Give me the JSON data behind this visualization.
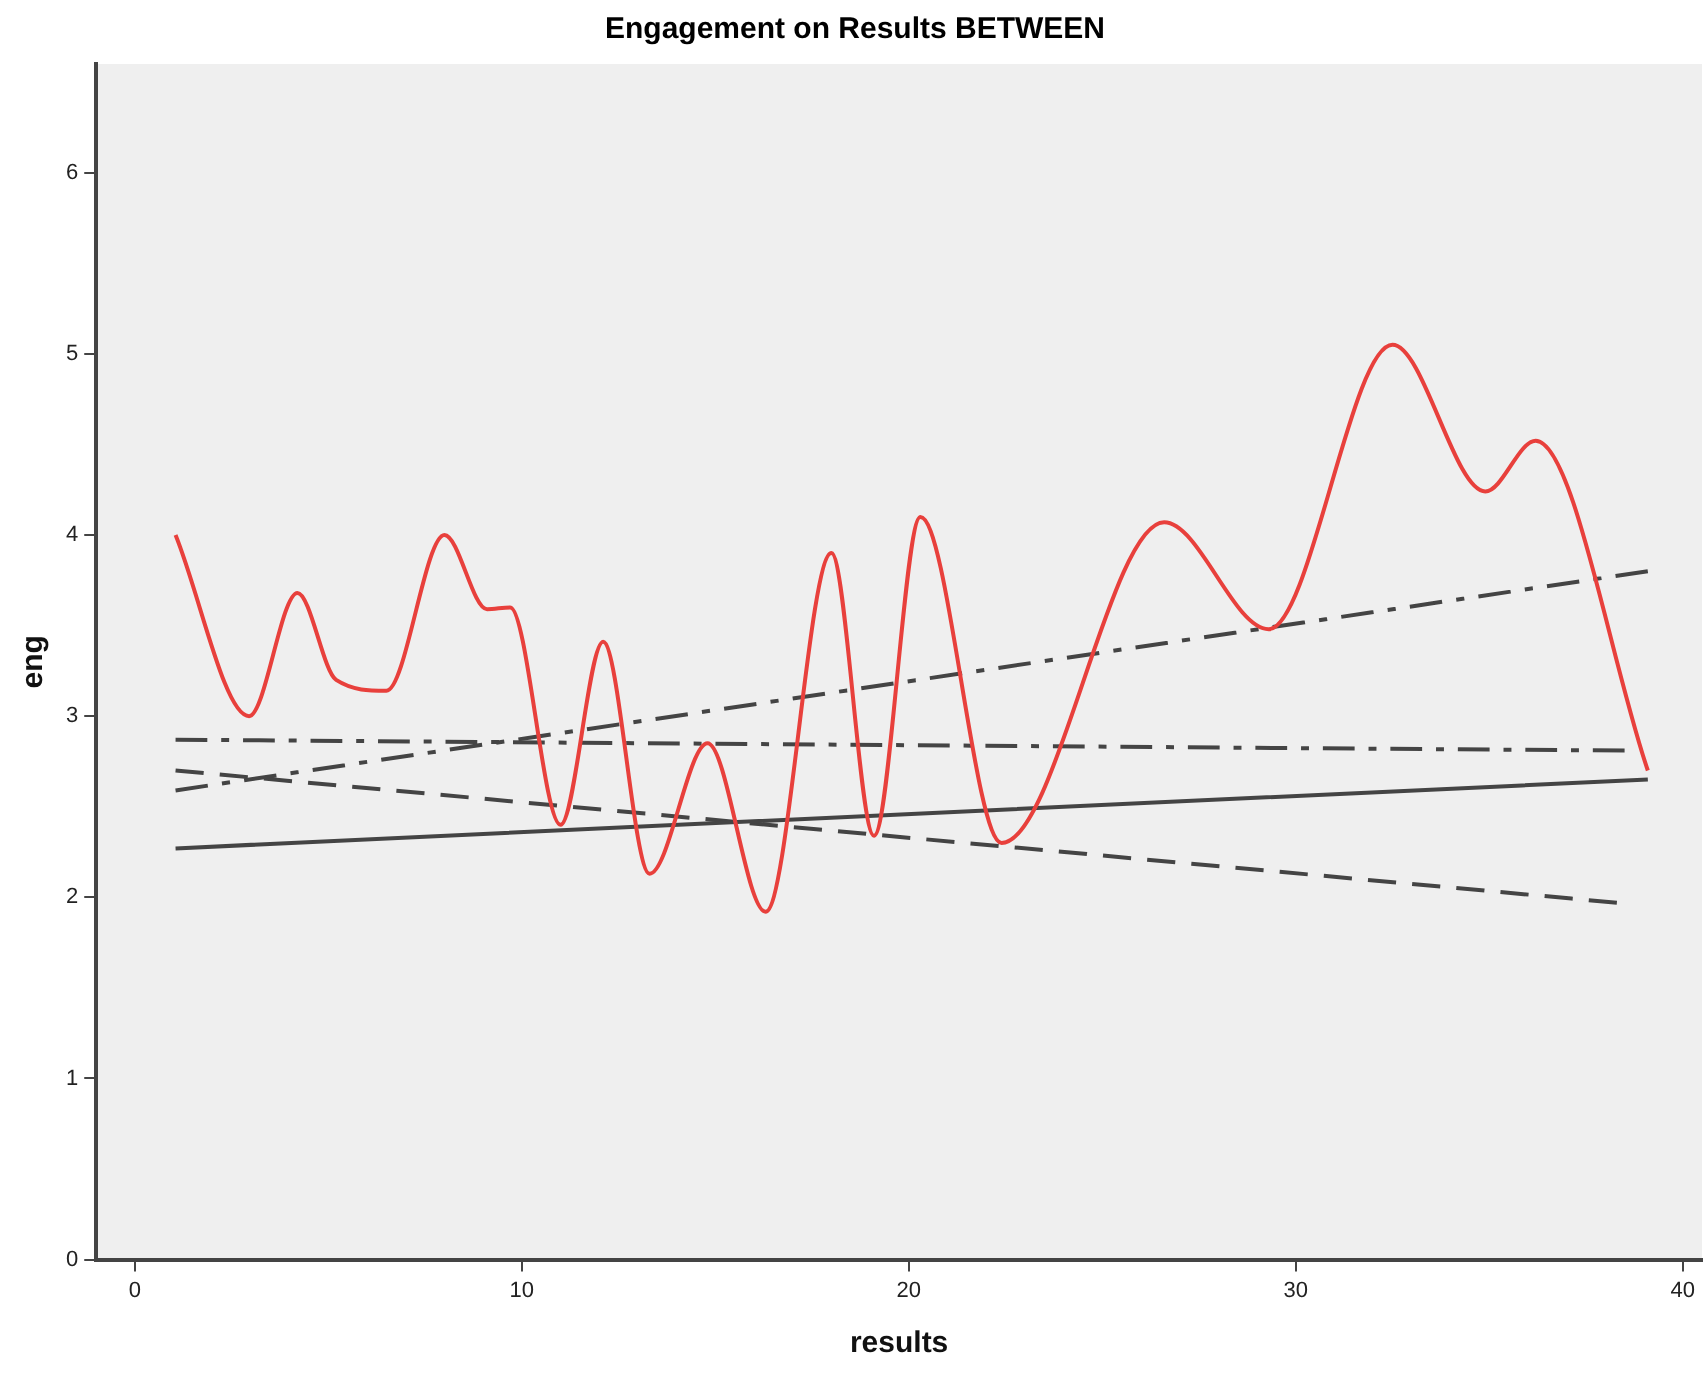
{
  "chart_data": {
    "type": "line",
    "title": "Engagement on Results BETWEEN",
    "xlabel": "results",
    "ylabel": "eng",
    "xlim": [
      -1,
      40.5
    ],
    "ylim": [
      0,
      6.6
    ],
    "xticks": [
      0,
      10,
      20,
      30,
      40
    ],
    "yticks": [
      0,
      1,
      2,
      3,
      4,
      5,
      6
    ],
    "grid": false,
    "legend": false,
    "marker": "none",
    "series": [
      {
        "color": "#e8403c",
        "line_style": "solid",
        "x": [
          1.05,
          2.95,
          4.2,
          5.2,
          6.5,
          8.0,
          9.1,
          9.7,
          11.0,
          12.1,
          13.3,
          14.8,
          16.3,
          18.0,
          19.1,
          20.3,
          22.4,
          26.6,
          29.3,
          32.5,
          34.9,
          36.2,
          39.1
        ],
        "values": [
          4.0,
          3.0,
          3.68,
          3.2,
          3.14,
          4.0,
          3.59,
          3.6,
          2.4,
          3.41,
          2.13,
          2.85,
          1.92,
          3.9,
          2.34,
          4.1,
          2.3,
          4.07,
          3.48,
          5.05,
          4.24,
          4.52,
          2.7
        ]
      },
      {
        "color": "#444444",
        "line_style": "solid",
        "x": [
          1.05,
          39.1
        ],
        "values": [
          2.27,
          2.65
        ]
      },
      {
        "color": "#444444",
        "line_style": "dashed",
        "x": [
          1.05,
          38.3
        ],
        "values": [
          2.7,
          1.97
        ]
      },
      {
        "color": "#444444",
        "line_style": "dashdot",
        "x": [
          1.05,
          38.5
        ],
        "values": [
          2.87,
          2.81
        ]
      },
      {
        "color": "#444444",
        "line_style": "dashdot",
        "x": [
          1.05,
          39.1
        ],
        "values": [
          2.59,
          3.8
        ]
      }
    ]
  }
}
